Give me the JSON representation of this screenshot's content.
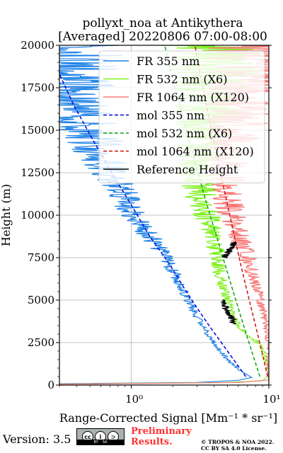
{
  "chart_data": {
    "type": "line",
    "title": "pollyxt_noa at Antikythera",
    "subtitle": "[Averaged] 20220806 07:00-08:00",
    "xlabel": "Range-Corrected Signal [Mm⁻¹ * sr⁻¹]",
    "ylabel": "Height (m)",
    "xscale": "log",
    "xlim": [
      0.3,
      10
    ],
    "ylim": [
      0,
      20000
    ],
    "x_ticks": [
      {
        "value": 1,
        "label": "10⁰"
      },
      {
        "value": 10,
        "label": "10¹"
      }
    ],
    "y_ticks": [
      0,
      2500,
      5000,
      7500,
      10000,
      12500,
      15000,
      17500,
      20000
    ],
    "grid": true,
    "legend_position": "top-right",
    "series": [
      {
        "name": "FR 355 nm",
        "color": "#1f82e6",
        "style": "solid",
        "noisy": true,
        "points": [
          [
            0.3,
            80
          ],
          [
            3,
            150
          ],
          [
            6,
            280
          ],
          [
            7.5,
            450
          ],
          [
            6.5,
            750
          ],
          [
            5.5,
            1200
          ],
          [
            4.4,
            2000
          ],
          [
            3.6,
            3000
          ],
          [
            3.0,
            4000
          ],
          [
            2.6,
            5000
          ],
          [
            2.2,
            6200
          ],
          [
            1.8,
            7400
          ],
          [
            1.5,
            8300
          ],
          [
            1.2,
            9300
          ],
          [
            1.0,
            10300
          ],
          [
            0.85,
            11300
          ],
          [
            0.7,
            12300
          ],
          [
            0.6,
            13500
          ],
          [
            0.5,
            15000
          ],
          [
            0.42,
            16500
          ],
          [
            0.38,
            18000
          ],
          [
            0.35,
            20000
          ]
        ]
      },
      {
        "name": "FR 532 nm (X6)",
        "color": "#7df01e",
        "style": "solid",
        "noisy": true,
        "points": [
          [
            0.3,
            60
          ],
          [
            5,
            150
          ],
          [
            9,
            250
          ],
          [
            10,
            600
          ],
          [
            9.5,
            1500
          ],
          [
            8.7,
            2300
          ],
          [
            7.5,
            2800
          ],
          [
            6.0,
            3500
          ],
          [
            5.2,
            4500
          ],
          [
            4.8,
            5500
          ],
          [
            4.4,
            6500
          ],
          [
            4.2,
            7500
          ],
          [
            4.0,
            8500
          ],
          [
            3.7,
            9500
          ],
          [
            3.4,
            10500
          ],
          [
            3.1,
            11500
          ],
          [
            3.0,
            12500
          ],
          [
            3.2,
            13500
          ],
          [
            3.5,
            15000
          ],
          [
            3.8,
            16500
          ],
          [
            4.0,
            18000
          ],
          [
            4.2,
            20000
          ]
        ]
      },
      {
        "name": "FR 1064 nm (X120)",
        "color": "#f87878",
        "style": "solid",
        "noisy": true,
        "points": [
          [
            0.3,
            50
          ],
          [
            6,
            150
          ],
          [
            10,
            300
          ],
          [
            10,
            1500
          ],
          [
            9.8,
            3000
          ],
          [
            9.0,
            4500
          ],
          [
            8.0,
            6000
          ],
          [
            7.0,
            7500
          ],
          [
            6.0,
            9000
          ],
          [
            5.2,
            10500
          ],
          [
            4.8,
            12000
          ],
          [
            5.0,
            13500
          ],
          [
            5.5,
            15000
          ],
          [
            6.5,
            16500
          ],
          [
            7.5,
            18000
          ],
          [
            8.5,
            20000
          ]
        ]
      },
      {
        "name": "mol 355 nm",
        "color": "#0000e0",
        "style": "dashed",
        "points": [
          [
            6.8,
            500
          ],
          [
            5.0,
            2000
          ],
          [
            3.6,
            3600
          ],
          [
            2.6,
            5300
          ],
          [
            1.9,
            7100
          ],
          [
            1.35,
            8800
          ],
          [
            1.0,
            10600
          ],
          [
            0.72,
            12500
          ],
          [
            0.52,
            14500
          ],
          [
            0.38,
            16500
          ],
          [
            0.3,
            18300
          ]
        ]
      },
      {
        "name": "mol 532 nm (X6)",
        "color": "#10a010",
        "style": "dashed",
        "points": [
          [
            8.6,
            500
          ],
          [
            7.5,
            2000
          ],
          [
            6.5,
            3600
          ],
          [
            5.6,
            5300
          ],
          [
            4.8,
            7100
          ],
          [
            4.15,
            8800
          ],
          [
            3.55,
            10600
          ],
          [
            3.05,
            12500
          ],
          [
            2.6,
            14500
          ],
          [
            2.25,
            16500
          ],
          [
            1.95,
            18300
          ],
          [
            1.75,
            20000
          ]
        ]
      },
      {
        "name": "mol 1064 nm (X120)",
        "color": "#d01010",
        "style": "dashed",
        "points": [
          [
            9.8,
            500
          ],
          [
            8.4,
            2800
          ],
          [
            7.2,
            5000
          ],
          [
            6.2,
            7200
          ],
          [
            5.4,
            9400
          ],
          [
            4.7,
            11600
          ],
          [
            4.15,
            13600
          ],
          [
            3.7,
            15600
          ],
          [
            3.3,
            17600
          ],
          [
            2.9,
            20000
          ]
        ]
      },
      {
        "name": "Reference Height",
        "color": "#000000",
        "style": "solid",
        "segments": [
          {
            "y0": 3600,
            "y1": 5000,
            "x_start": 5.6,
            "x_end": 4.6
          },
          {
            "y0": 7500,
            "y1": 8400,
            "x_start": 4.8,
            "x_end": 5.6
          }
        ]
      }
    ]
  },
  "footer": {
    "version_text": "Version: 3.5",
    "cc_letters": [
      "cc",
      "i",
      "⊃"
    ],
    "cc_strip": [
      "BY",
      "SA"
    ],
    "preliminary_line1": "Preliminary",
    "preliminary_line2": "Results.",
    "copyright_line1": "© TROPOS & NOA 2022.",
    "copyright_line2": "CC BY SA 4.0 License."
  }
}
